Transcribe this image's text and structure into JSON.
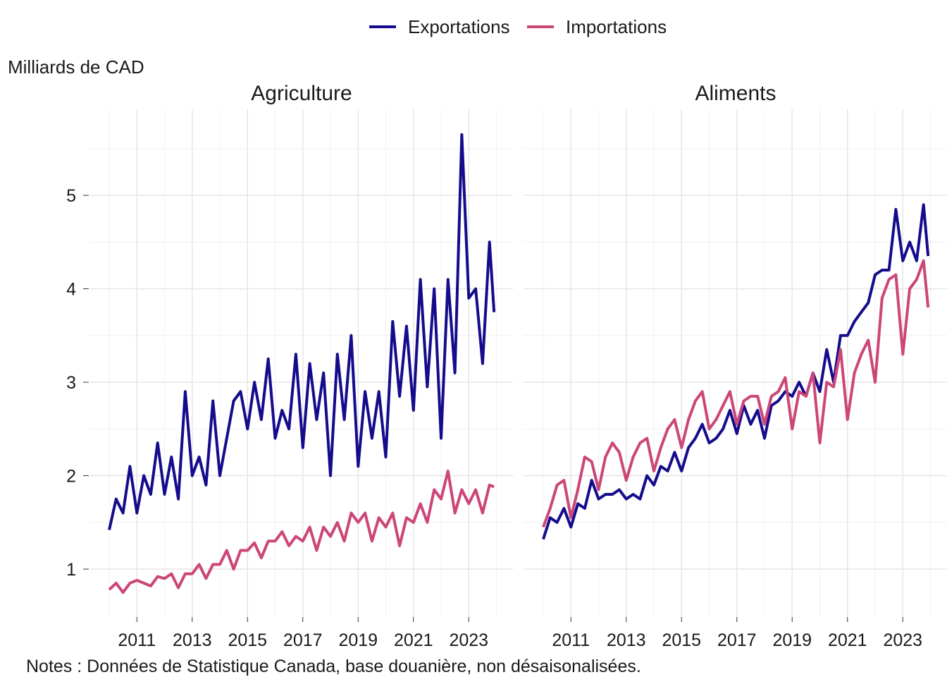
{
  "chart_data": {
    "type": "line",
    "ylabel": "Milliards de CAD",
    "note": "Notes : Données de Statistique Canada, base douanière, non désaisonalisées.",
    "legend": {
      "position": "top",
      "entries": [
        "Exportations",
        "Importations"
      ]
    },
    "colors": {
      "Exportations": "#140C8C",
      "Importations": "#CC4678"
    },
    "grid": true,
    "ylim": [
      0.5,
      5.9
    ],
    "xlim": [
      2009.7,
      2024.3
    ],
    "yticks": [
      "1",
      "2",
      "3",
      "4",
      "5"
    ],
    "xticks": [
      "2011",
      "2013",
      "2015",
      "2017",
      "2019",
      "2021",
      "2023"
    ],
    "x": [
      "2010-01",
      "2010-04",
      "2010-07",
      "2010-10",
      "2011-01",
      "2011-04",
      "2011-07",
      "2011-10",
      "2012-01",
      "2012-04",
      "2012-07",
      "2012-10",
      "2013-01",
      "2013-04",
      "2013-07",
      "2013-10",
      "2014-01",
      "2014-04",
      "2014-07",
      "2014-10",
      "2015-01",
      "2015-04",
      "2015-07",
      "2015-10",
      "2016-01",
      "2016-04",
      "2016-07",
      "2016-10",
      "2017-01",
      "2017-04",
      "2017-07",
      "2017-10",
      "2018-01",
      "2018-04",
      "2018-07",
      "2018-10",
      "2019-01",
      "2019-04",
      "2019-07",
      "2019-10",
      "2020-01",
      "2020-04",
      "2020-07",
      "2020-10",
      "2021-01",
      "2021-04",
      "2021-07",
      "2021-10",
      "2022-01",
      "2022-04",
      "2022-07",
      "2022-10",
      "2023-01",
      "2023-04",
      "2023-07",
      "2023-10",
      "2023-12"
    ],
    "panels": [
      {
        "title": "Agriculture",
        "series": [
          {
            "name": "Exportations",
            "values": [
              1.42,
              1.75,
              1.6,
              2.1,
              1.6,
              2.0,
              1.8,
              2.35,
              1.8,
              2.2,
              1.75,
              2.9,
              2.0,
              2.2,
              1.9,
              2.8,
              2.0,
              2.4,
              2.8,
              2.9,
              2.5,
              3.0,
              2.6,
              3.25,
              2.4,
              2.7,
              2.5,
              3.3,
              2.3,
              3.2,
              2.6,
              3.1,
              2.0,
              3.3,
              2.6,
              3.5,
              2.1,
              2.9,
              2.4,
              2.9,
              2.2,
              3.65,
              2.85,
              3.6,
              2.7,
              4.1,
              2.95,
              4.0,
              2.4,
              4.1,
              3.1,
              5.65,
              3.9,
              4.0,
              3.2,
              4.5,
              3.75
            ]
          },
          {
            "name": "Importations",
            "values": [
              0.78,
              0.85,
              0.75,
              0.85,
              0.88,
              0.85,
              0.82,
              0.92,
              0.9,
              0.95,
              0.8,
              0.95,
              0.95,
              1.05,
              0.9,
              1.05,
              1.05,
              1.2,
              1.0,
              1.2,
              1.2,
              1.28,
              1.12,
              1.3,
              1.3,
              1.4,
              1.25,
              1.35,
              1.3,
              1.45,
              1.2,
              1.45,
              1.35,
              1.5,
              1.3,
              1.6,
              1.5,
              1.6,
              1.3,
              1.55,
              1.45,
              1.6,
              1.25,
              1.55,
              1.5,
              1.7,
              1.5,
              1.85,
              1.75,
              2.05,
              1.6,
              1.85,
              1.7,
              1.85,
              1.6,
              1.9,
              1.88
            ]
          }
        ]
      },
      {
        "title": "Aliments",
        "series": [
          {
            "name": "Exportations",
            "values": [
              1.32,
              1.55,
              1.5,
              1.65,
              1.45,
              1.7,
              1.65,
              1.95,
              1.75,
              1.8,
              1.8,
              1.85,
              1.75,
              1.8,
              1.75,
              2.0,
              1.9,
              2.1,
              2.05,
              2.25,
              2.05,
              2.3,
              2.4,
              2.55,
              2.35,
              2.4,
              2.5,
              2.7,
              2.45,
              2.75,
              2.55,
              2.7,
              2.4,
              2.75,
              2.8,
              2.9,
              2.85,
              3.0,
              2.85,
              3.1,
              2.9,
              3.35,
              3.0,
              3.5,
              3.5,
              3.65,
              3.75,
              3.85,
              4.15,
              4.2,
              4.2,
              4.85,
              4.3,
              4.5,
              4.3,
              4.9,
              4.35
            ]
          },
          {
            "name": "Importations",
            "values": [
              1.45,
              1.65,
              1.9,
              1.95,
              1.55,
              1.85,
              2.2,
              2.15,
              1.85,
              2.2,
              2.35,
              2.25,
              1.95,
              2.2,
              2.35,
              2.4,
              2.05,
              2.3,
              2.5,
              2.6,
              2.3,
              2.6,
              2.8,
              2.9,
              2.5,
              2.6,
              2.75,
              2.9,
              2.55,
              2.8,
              2.85,
              2.85,
              2.55,
              2.85,
              2.9,
              3.05,
              2.5,
              2.9,
              2.85,
              3.1,
              2.35,
              3.0,
              2.95,
              3.35,
              2.6,
              3.1,
              3.3,
              3.45,
              3.0,
              3.9,
              4.1,
              4.15,
              3.3,
              4.0,
              4.1,
              4.3,
              3.8
            ]
          }
        ]
      }
    ]
  }
}
